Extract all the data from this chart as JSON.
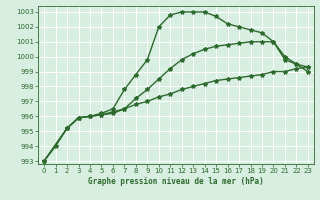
{
  "line1": {
    "x": [
      0,
      1,
      2,
      3,
      4,
      5,
      6,
      7,
      8,
      9,
      10,
      11,
      12,
      13,
      14,
      15,
      16,
      17,
      18,
      19,
      20,
      21,
      22,
      23
    ],
    "y": [
      993.0,
      994.0,
      995.2,
      995.9,
      996.0,
      996.2,
      996.5,
      997.8,
      998.8,
      999.8,
      1002.0,
      1002.8,
      1003.0,
      1003.0,
      1003.0,
      1002.7,
      1002.2,
      1002.0,
      1001.8,
      1001.6,
      1001.0,
      1000.0,
      999.5,
      999.0
    ]
  },
  "line2": {
    "x": [
      0,
      2,
      3,
      4,
      5,
      6,
      7,
      8,
      9,
      10,
      11,
      12,
      13,
      14,
      15,
      16,
      17,
      18,
      19,
      20,
      21,
      22,
      23
    ],
    "y": [
      993.0,
      995.2,
      995.9,
      996.0,
      996.1,
      996.3,
      996.5,
      997.2,
      997.8,
      998.5,
      999.2,
      999.8,
      1000.2,
      1000.5,
      1000.7,
      1000.8,
      1000.9,
      1001.0,
      1001.0,
      1001.0,
      999.8,
      999.5,
      999.3
    ]
  },
  "line3": {
    "x": [
      0,
      2,
      3,
      4,
      5,
      6,
      7,
      8,
      9,
      10,
      11,
      12,
      13,
      14,
      15,
      16,
      17,
      18,
      19,
      20,
      21,
      22,
      23
    ],
    "y": [
      993.0,
      995.2,
      995.9,
      996.0,
      996.1,
      996.2,
      996.5,
      996.8,
      997.0,
      997.3,
      997.5,
      997.8,
      998.0,
      998.2,
      998.4,
      998.5,
      998.6,
      998.7,
      998.8,
      999.0,
      999.0,
      999.2,
      999.3
    ]
  },
  "bg_color": "#d8eee0",
  "line_color": "#2d6a2d",
  "grid_color": "#ffffff",
  "xlabel": "Graphe pression niveau de la mer (hPa)",
  "ylim_min": 992.8,
  "ylim_max": 1003.4,
  "xlim_min": -0.5,
  "xlim_max": 23.5,
  "yticks": [
    993,
    994,
    995,
    996,
    997,
    998,
    999,
    1000,
    1001,
    1002,
    1003
  ],
  "xticks": [
    0,
    1,
    2,
    3,
    4,
    5,
    6,
    7,
    8,
    9,
    10,
    11,
    12,
    13,
    14,
    15,
    16,
    17,
    18,
    19,
    20,
    21,
    22,
    23
  ]
}
